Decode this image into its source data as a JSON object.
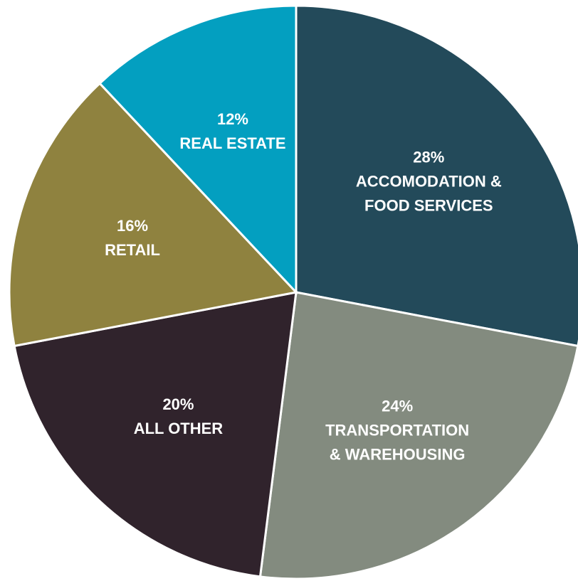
{
  "chart_data": {
    "type": "pie",
    "categories": [
      [
        "ACCOMODATION &",
        "FOOD SERVICES"
      ],
      [
        "TRANSPORTATION",
        "& WAREHOUSING"
      ],
      [
        "ALL OTHER"
      ],
      [
        "RETAIL"
      ],
      [
        "REAL ESTATE"
      ]
    ],
    "values": [
      28,
      24,
      20,
      16,
      12
    ],
    "value_labels": [
      "28%",
      "24%",
      "20%",
      "16%",
      "12%"
    ],
    "colors": [
      "#234a5a",
      "#838b7f",
      "#30232c",
      "#8f823f",
      "#039fc0"
    ]
  }
}
